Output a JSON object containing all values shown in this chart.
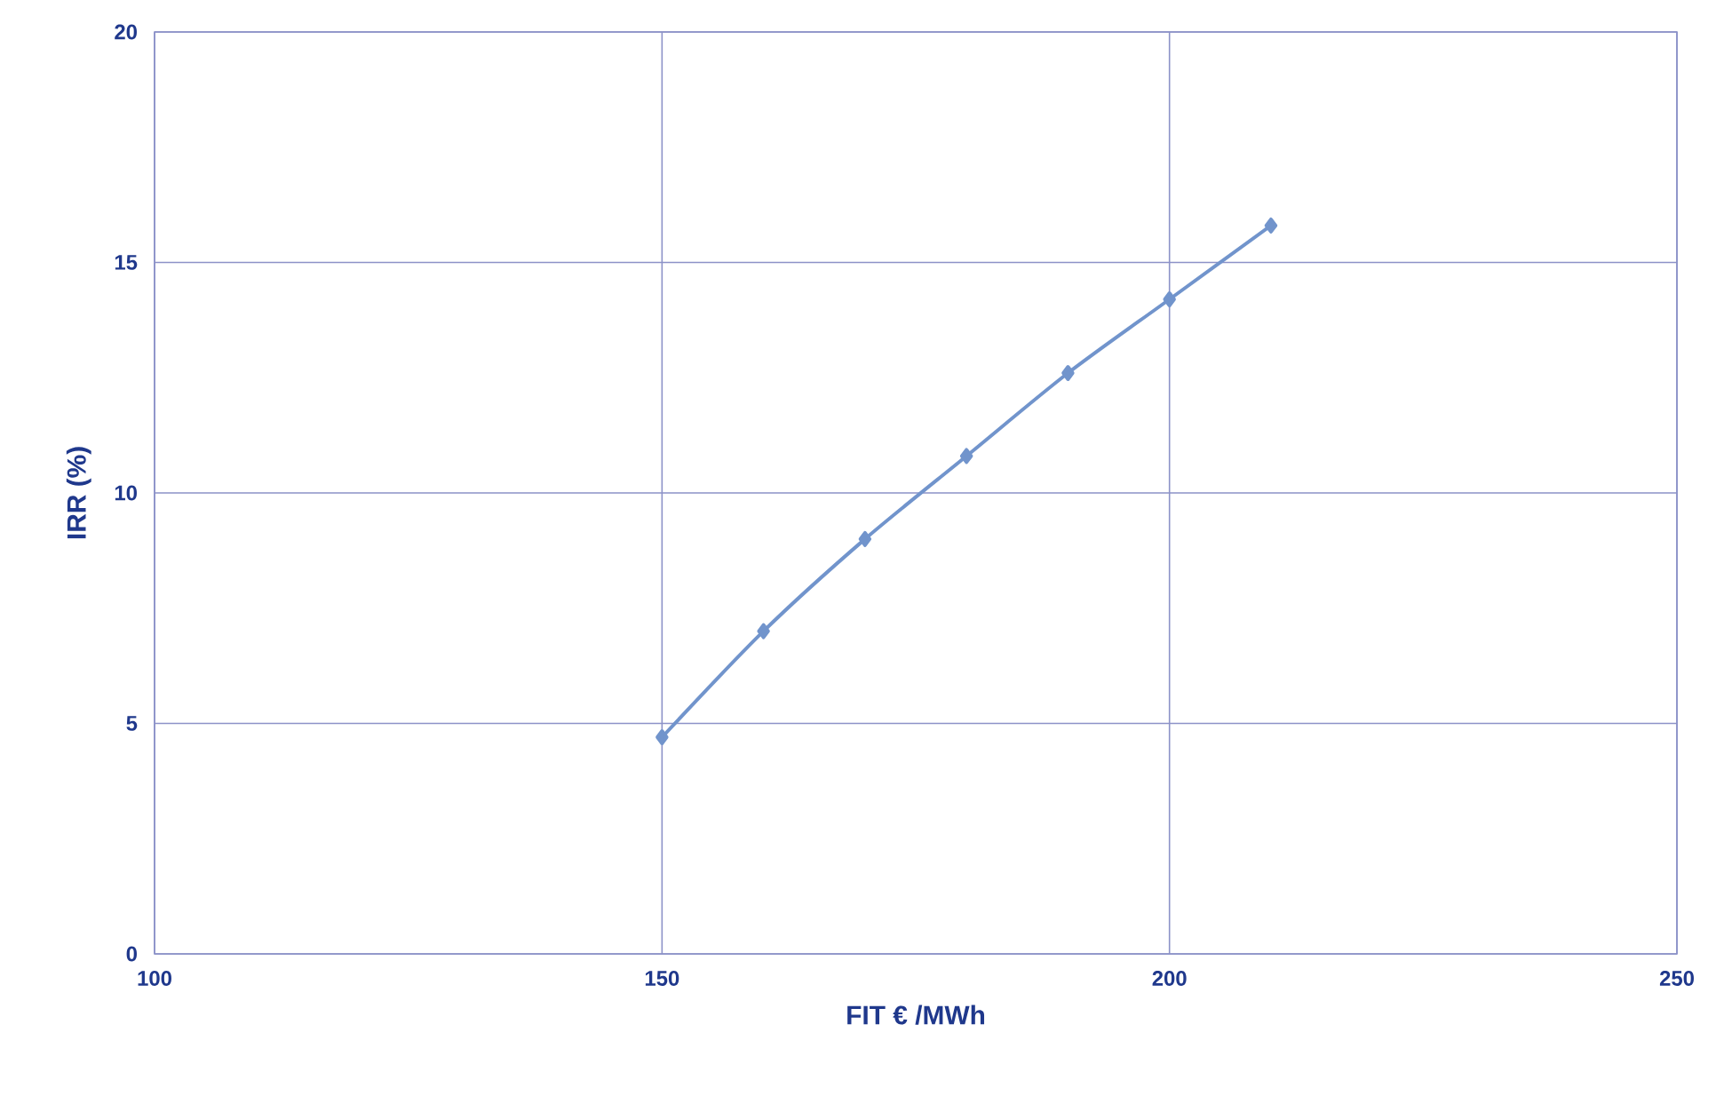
{
  "chart_data": {
    "type": "line",
    "xlabel": "FIT € /MWh",
    "ylabel": "IRR (%)",
    "x": [
      150,
      160,
      170,
      180,
      190,
      200,
      210
    ],
    "series": [
      {
        "color": "#7194cc",
        "values": [
          4.7,
          7.0,
          9.0,
          10.8,
          12.6,
          14.2,
          15.8
        ]
      }
    ],
    "xlim": [
      100,
      250
    ],
    "ylim": [
      0,
      20
    ],
    "xticks": [
      100,
      150,
      200,
      250
    ],
    "yticks": [
      0,
      5,
      10,
      15,
      20
    ],
    "grid": true,
    "marker": "diamond",
    "line_style": "solid"
  }
}
